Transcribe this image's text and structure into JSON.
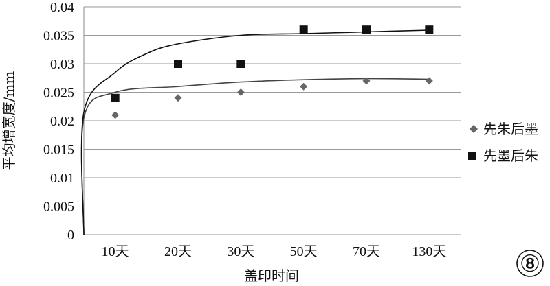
{
  "chart_data": {
    "type": "scatter",
    "title": "",
    "xlabel": "盖印时间",
    "ylabel": "平均增宽度/mm",
    "categories": [
      "10天",
      "20天",
      "30天",
      "50天",
      "70天",
      "130天"
    ],
    "ylim": [
      0,
      0.04
    ],
    "yticks": [
      "0",
      "0.005",
      "0.01",
      "0.015",
      "0.02",
      "0.025",
      "0.03",
      "0.035",
      "0.04"
    ],
    "grid": "horizontal",
    "legend_position": "right",
    "series": [
      {
        "name": "先朱后墨",
        "marker": "diamond",
        "color": "#666666",
        "values": [
          0.021,
          0.024,
          0.025,
          0.026,
          0.027,
          0.027
        ],
        "trend_curve": [
          [
            0,
            0
          ],
          [
            0.5,
            0.0205
          ],
          [
            1,
            0.025
          ],
          [
            2,
            0.026
          ],
          [
            3,
            0.0268
          ],
          [
            4,
            0.0272
          ],
          [
            5,
            0.0274
          ],
          [
            6,
            0.0273
          ]
        ]
      },
      {
        "name": "先墨后朱",
        "marker": "square",
        "color": "#111111",
        "values": [
          0.024,
          0.03,
          0.03,
          0.036,
          0.036,
          0.036
        ],
        "trend_curve": [
          [
            0,
            0
          ],
          [
            0.5,
            0.0215
          ],
          [
            1,
            0.0285
          ],
          [
            1.5,
            0.0318
          ],
          [
            2,
            0.0335
          ],
          [
            3,
            0.035
          ],
          [
            4,
            0.0353
          ],
          [
            5,
            0.0356
          ],
          [
            6,
            0.0359
          ]
        ]
      }
    ],
    "panel_label": "⑧"
  }
}
